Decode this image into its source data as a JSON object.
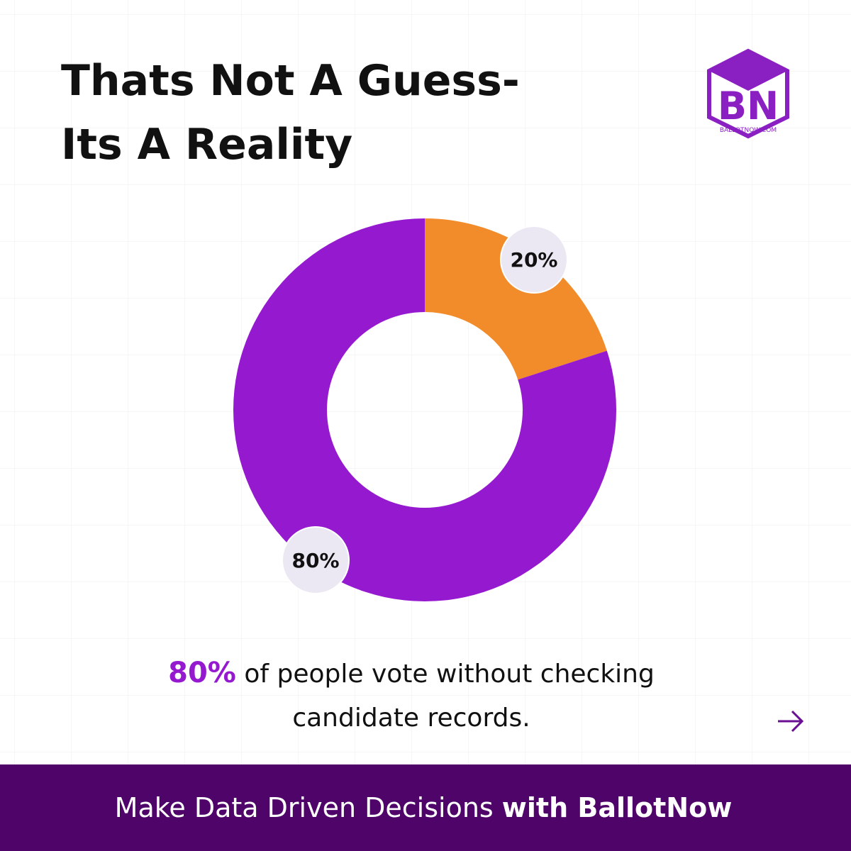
{
  "header": {
    "title_lines": [
      "Thats Not A Guess-",
      "Its A Reality"
    ],
    "logo_letters": "BN",
    "logo_text": "BALLOTNOW.COM"
  },
  "chart_data": {
    "type": "pie",
    "donut": true,
    "values": [
      20,
      80
    ],
    "value_labels": [
      "20%",
      "80%"
    ],
    "colors": [
      "#f28c2b",
      "#9519cf"
    ]
  },
  "caption": {
    "highlight": "80%",
    "text_line1": "of people vote without checking",
    "text_line2": "candidate records."
  },
  "footer": {
    "text": "Make Data Driven Decisions",
    "bold": "with BallotNow"
  }
}
